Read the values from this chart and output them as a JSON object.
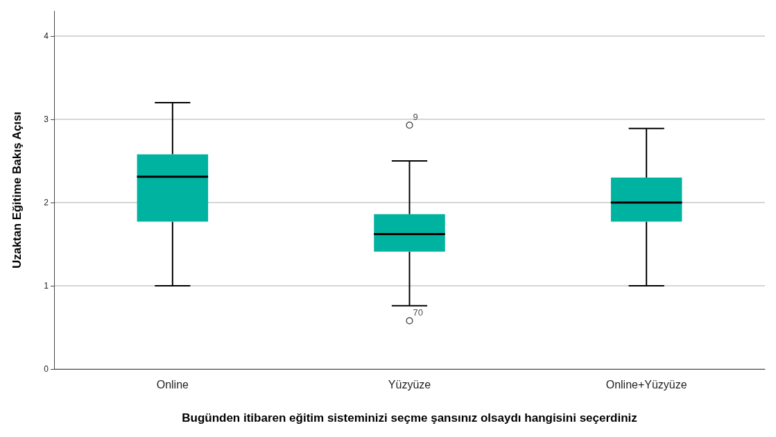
{
  "chart_data": {
    "type": "box",
    "xlabel": "Bugünden itibaren eğitim sisteminizi seçme şansınız olsaydı hangisini seçerdiniz",
    "ylabel": "Uzaktan Eğitime Bakış Açısı",
    "categories": [
      "Online",
      "Yüzyüze",
      "Online+Yüzyüze"
    ],
    "boxes": [
      {
        "low": 1.0,
        "q1": 1.77,
        "median": 2.31,
        "q3": 2.58,
        "high": 3.2
      },
      {
        "low": 0.76,
        "q1": 1.41,
        "median": 1.62,
        "q3": 1.86,
        "high": 2.5,
        "outliers": [
          2.93,
          0.58
        ]
      },
      {
        "low": 1.0,
        "q1": 1.77,
        "median": 2.0,
        "q3": 2.3,
        "high": 2.89
      }
    ],
    "color": "#00b2a0",
    "ylim": [
      0,
      4.3
    ],
    "yticks": [
      0,
      1,
      2,
      3,
      4
    ],
    "grid": "y",
    "annotations": [
      "9",
      "70"
    ]
  }
}
